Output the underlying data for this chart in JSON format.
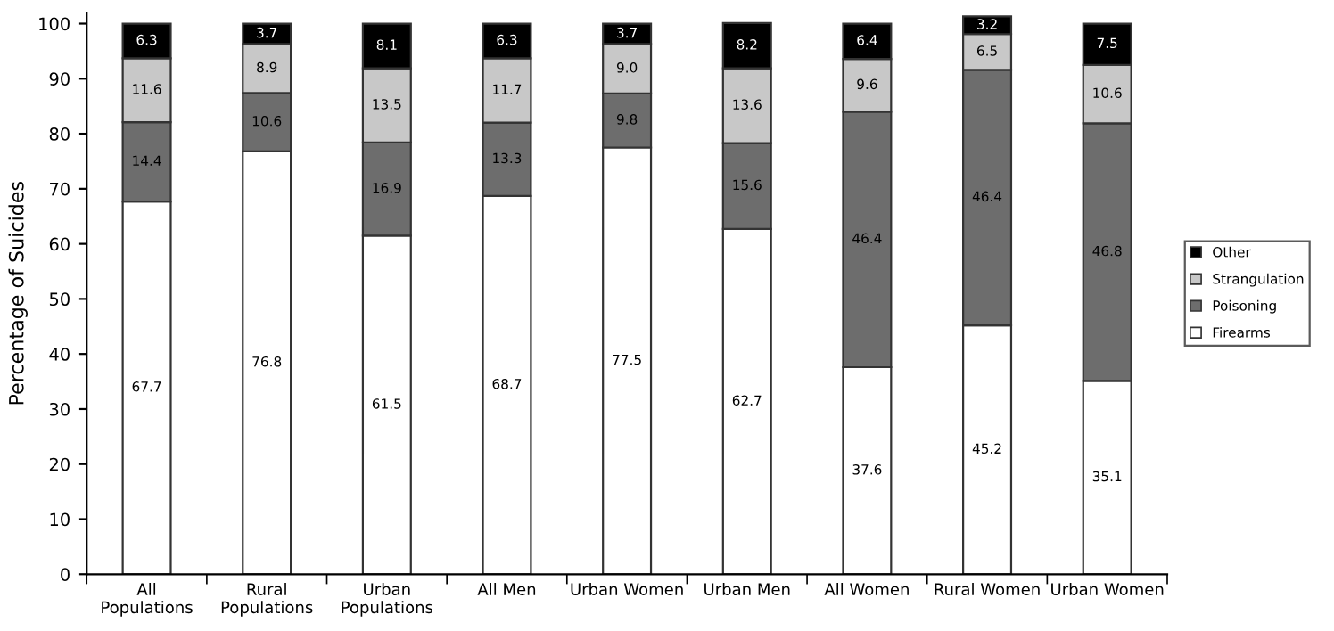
{
  "chart_data": {
    "type": "bar",
    "stacked": true,
    "ylabel": "Percentage of Suicides",
    "categories": [
      "All Populations",
      "Rural Populations",
      "Urban Populations",
      "All Men",
      "Urban Women",
      "Urban Men",
      "All Women",
      "Rural Women",
      "Urban Women"
    ],
    "series": [
      {
        "name": "Firearms",
        "color": "#ffffff",
        "values": [
          67.7,
          76.8,
          61.5,
          68.7,
          77.5,
          62.7,
          37.6,
          45.2,
          35.1
        ],
        "value_labels": [
          "67.7",
          "76.8",
          "61.5",
          "68.7",
          "77.5",
          "62.7",
          "37.6",
          "45.2",
          "35.1"
        ]
      },
      {
        "name": "Poisoning",
        "color": "#6d6d6d",
        "values": [
          14.4,
          10.6,
          16.9,
          13.3,
          9.8,
          15.6,
          46.4,
          46.4,
          46.8
        ],
        "value_labels": [
          "14.4",
          "10.6",
          "16.9",
          "13.3",
          "9.8",
          "15.6",
          "46.4",
          "46.4",
          "46.8"
        ]
      },
      {
        "name": "Strangulation",
        "color": "#c8c8c8",
        "values": [
          11.6,
          8.9,
          13.5,
          11.7,
          9.0,
          13.6,
          9.6,
          6.5,
          10.6
        ],
        "value_labels": [
          "11.6",
          "8.9",
          "13.5",
          "11.7",
          "9.0",
          "13.6",
          "9.6",
          "6.5",
          "10.6"
        ]
      },
      {
        "name": "Other",
        "color": "#000000",
        "values": [
          6.3,
          3.7,
          8.1,
          6.3,
          3.7,
          8.2,
          6.4,
          3.2,
          7.5
        ],
        "value_labels": [
          "6.3",
          "3.7",
          "8.1",
          "6.3",
          "3.7",
          "8.2",
          "6.4",
          "3.2",
          "7.5"
        ]
      }
    ],
    "ylim": [
      0,
      102
    ],
    "yticks": [
      0,
      10,
      20,
      30,
      40,
      50,
      60,
      70,
      80,
      90,
      100
    ],
    "grid": false,
    "legend": "right"
  }
}
